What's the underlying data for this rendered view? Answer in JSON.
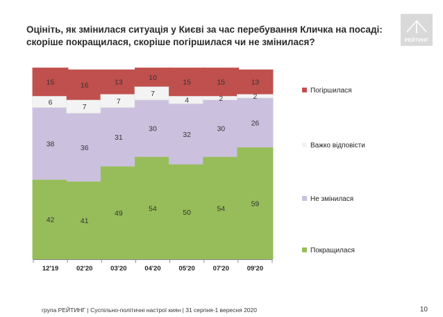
{
  "title": "Оцініть, як змінилася ситуація у Києві за час перебування Кличка на посаді: скоріше покращилася, скоріше погіршилася чи не змінилася?",
  "logo": {
    "text": "РЕЙТИНГ"
  },
  "footer": {
    "text": "група РЕЙТИНГ  |  Суспільно-політичні настрої киян | 31 серпня-1 вересня  2020"
  },
  "page_number": "10",
  "colors": {
    "improved": "#97bd5a",
    "unchanged": "#cbc1df",
    "hard_to_say": "#f3f3f3",
    "worsened": "#c0504d"
  },
  "chart_data": {
    "type": "bar",
    "stacked": true,
    "percent": true,
    "categories": [
      "12'19",
      "02'20",
      "03'20",
      "04'20",
      "05'20",
      "07'20",
      "09'20"
    ],
    "series": [
      {
        "name": "Покращилася",
        "color": "#97bd5a",
        "values": [
          42,
          41,
          49,
          54,
          50,
          54,
          59
        ]
      },
      {
        "name": "Не змінилася",
        "color": "#cbc1df",
        "values": [
          38,
          36,
          31,
          30,
          32,
          30,
          26
        ]
      },
      {
        "name": "Важко відповісти",
        "color": "#f3f3f3",
        "values": [
          6,
          7,
          7,
          7,
          4,
          2,
          2
        ]
      },
      {
        "name": "Погіршилася",
        "color": "#c0504d",
        "values": [
          15,
          16,
          13,
          10,
          15,
          15,
          13
        ]
      }
    ],
    "ylim": [
      0,
      100
    ],
    "legend_position": "right",
    "legend_order": [
      "Погіршилася",
      "Важко відповісти",
      "Не змінилася",
      "Покращилася"
    ],
    "grid": false
  }
}
